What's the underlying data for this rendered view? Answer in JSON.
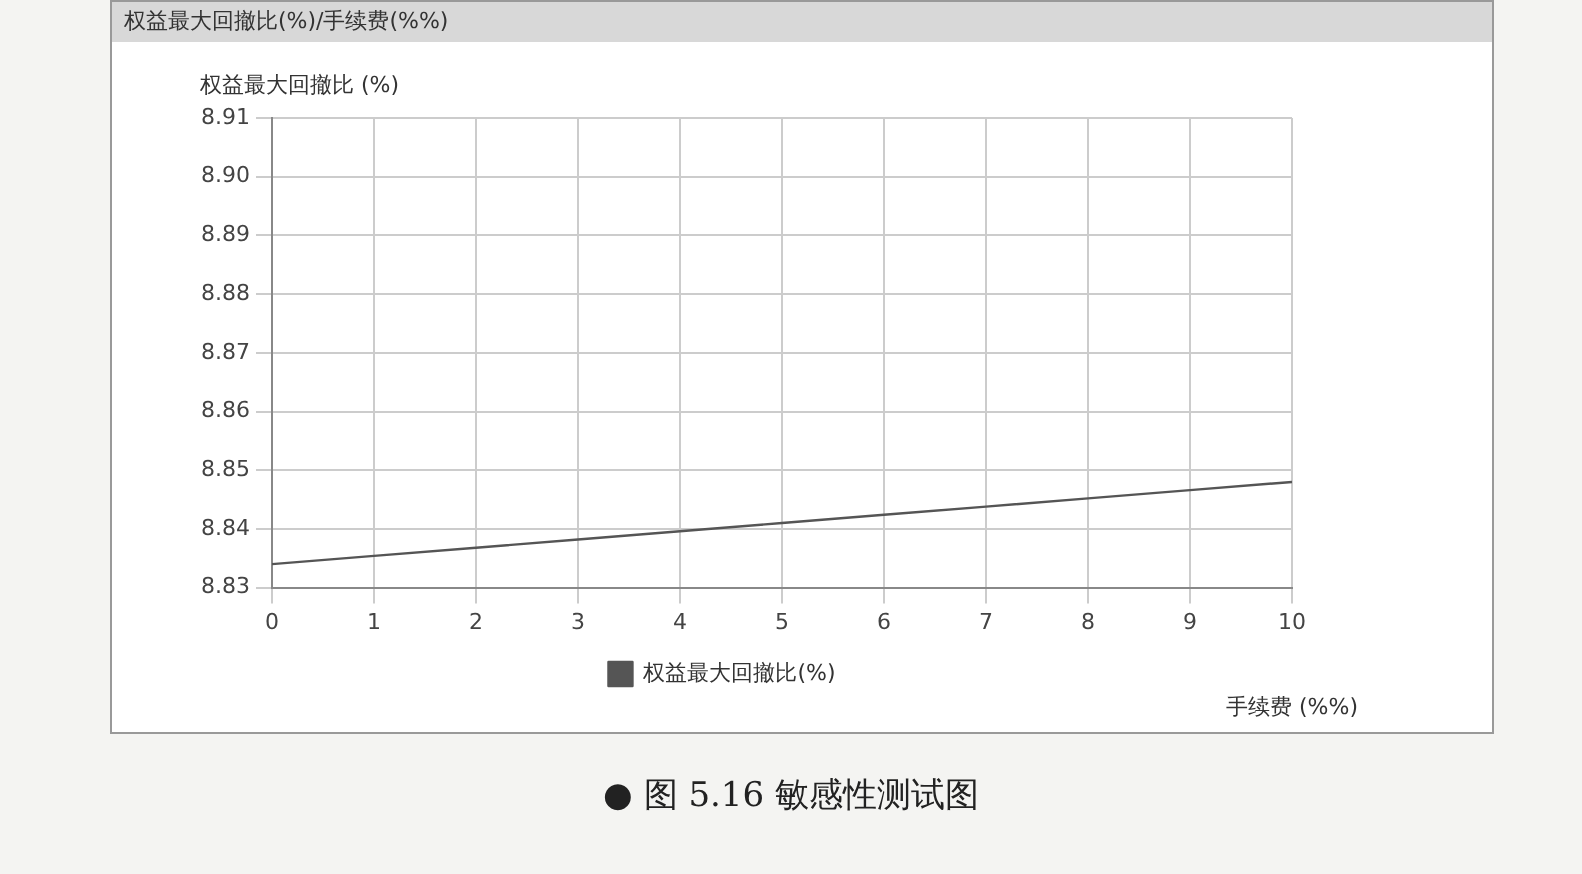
{
  "chart_data": {
    "type": "line",
    "title": "权益最大回撤比(%)/手续费(%%)",
    "ylabel": "权益最大回撤比 (%)",
    "xlabel": "手续费 (%%)",
    "x": [
      0,
      1,
      2,
      3,
      4,
      5,
      6,
      7,
      8,
      9,
      10
    ],
    "series": [
      {
        "name": "权益最大回撤比(%)",
        "color": "#555555",
        "values": [
          8.834,
          8.8354,
          8.8368,
          8.8382,
          8.8396,
          8.841,
          8.8424,
          8.8438,
          8.8452,
          8.8466,
          8.848
        ]
      }
    ],
    "xlim": [
      0,
      10
    ],
    "xticks": [
      0,
      1,
      2,
      3,
      4,
      5,
      6,
      7,
      8,
      9,
      10
    ],
    "ylim": [
      8.83,
      8.91
    ],
    "yticks": [
      8.83,
      8.84,
      8.85,
      8.86,
      8.87,
      8.88,
      8.89,
      {
        "value": 8.9,
        "label": "8.90"
      },
      8.91
    ],
    "grid": true,
    "legend": "bottom",
    "marker": "none",
    "line_style": "solid",
    "annotations": [
      "● 图 5.16 敏感性测试图"
    ]
  }
}
